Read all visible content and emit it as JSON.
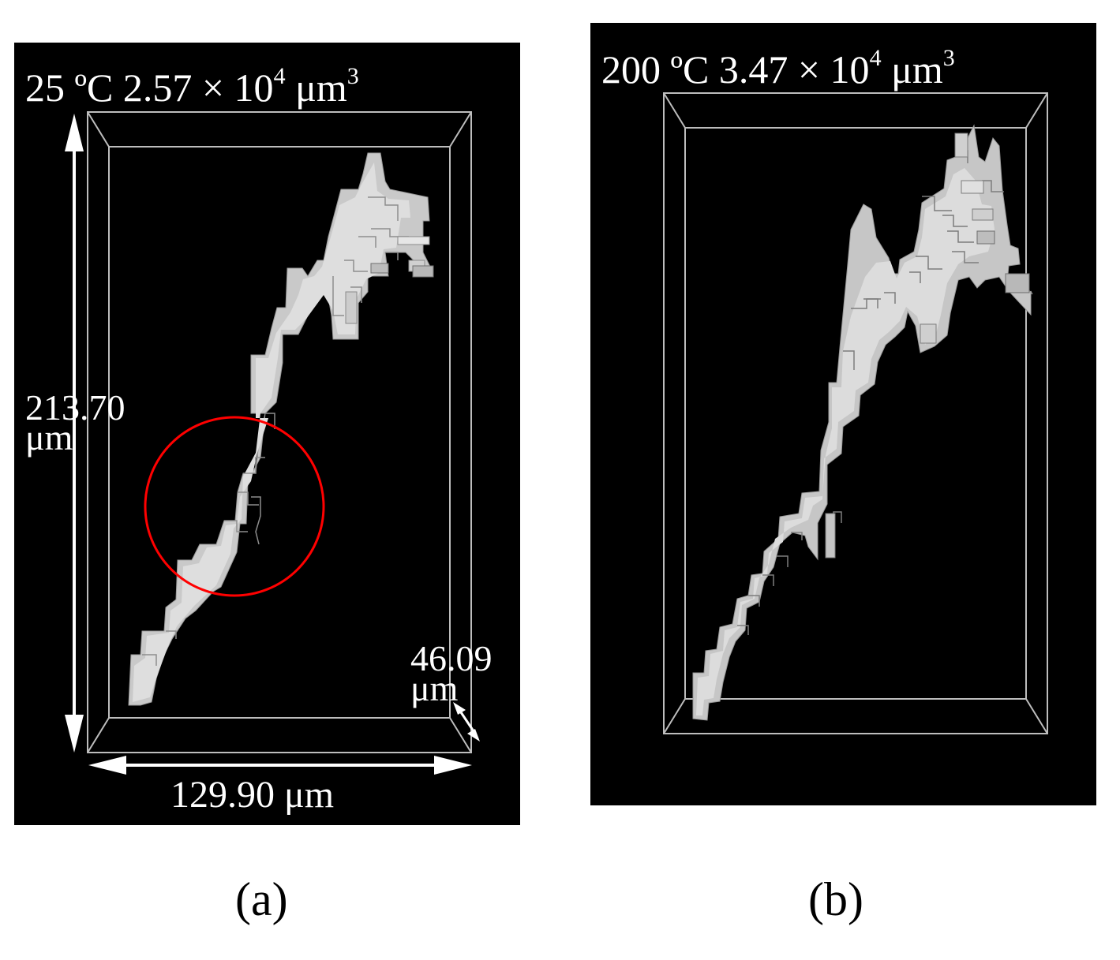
{
  "panels": [
    {
      "id": "a",
      "temperature": "25 ºC",
      "volume": "2.57 × 10",
      "volume_exponent": "4",
      "unit": "μm",
      "unit_exponent": "3",
      "height_value": "213.70",
      "height_unit": "μm",
      "depth_value": "46.09",
      "depth_unit": "μm",
      "width_label": "129.90 μm",
      "caption": "(a)"
    },
    {
      "id": "b",
      "temperature": "200 ºC",
      "volume": "3.47 × 10",
      "volume_exponent": "4",
      "unit": "μm",
      "unit_exponent": "3",
      "caption": "(b)"
    }
  ],
  "colors": {
    "background": "#000000",
    "pore": "#c8c8c8",
    "box": "#c0c0c0",
    "highlight_circle": "#ff0000",
    "text": "#ffffff"
  }
}
